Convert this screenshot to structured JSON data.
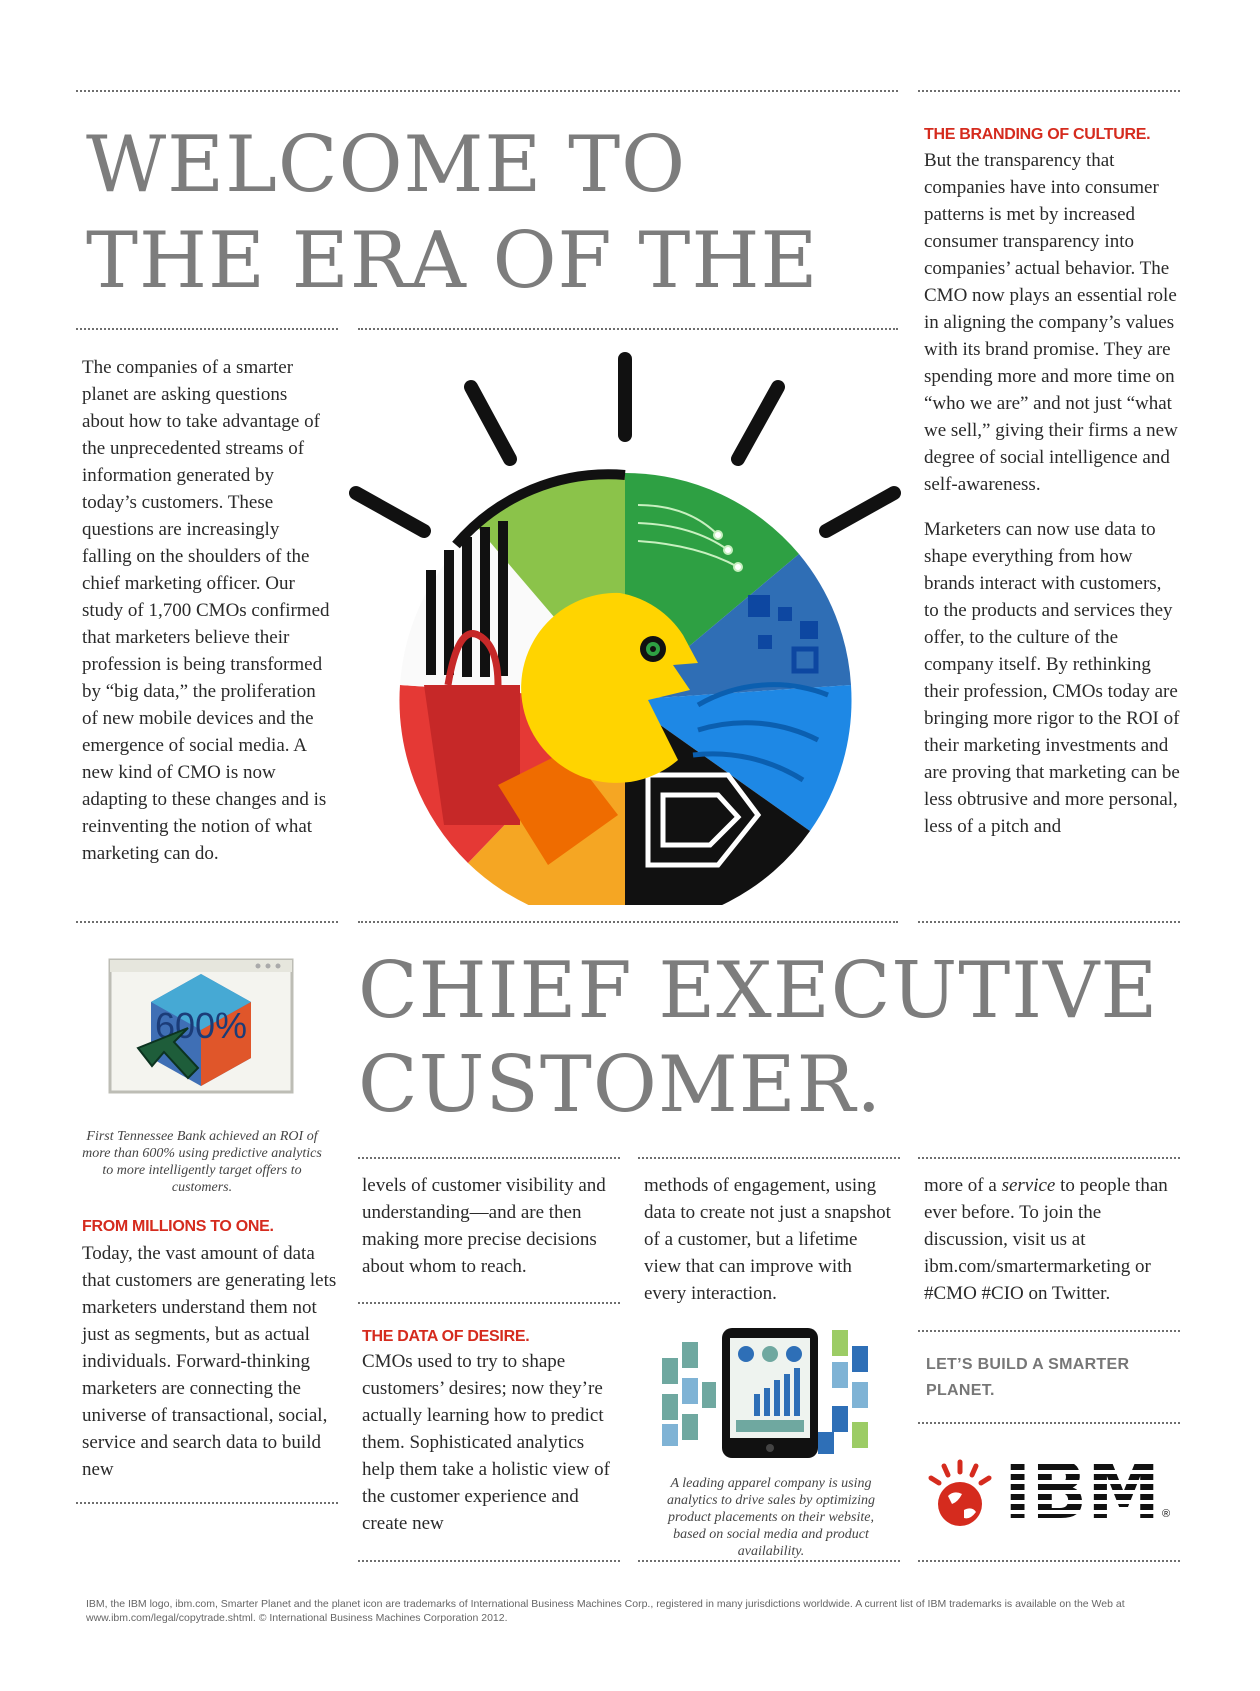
{
  "headline": {
    "top_line1": "WELCOME TO",
    "top_line2": "THE ERA OF THE",
    "bottom_line1": "CHIEF EXECUTIVE",
    "bottom_line2": "CUSTOMER."
  },
  "intro": {
    "text": "The companies of a smarter planet are asking questions about how to take advantage of the unprecedented streams of information generated by today’s customers. These questions are increasingly falling on the shoulders of the chief marketing officer. Our study of 1,700 CMOs confirmed that marketers believe their profession is being transformed by “big data,” the proliferation of new mobile devices and the emergence of social media. A new kind of CMO is now adapting to these changes and is reinventing the notion of what marketing can do."
  },
  "branding": {
    "heading": "THE BRANDING OF CULTURE.",
    "paragraph1": "But the transparency that companies have into consumer patterns is met by increased consumer transparency into companies’ actual behavior. The CMO now plays an essential role in aligning the company’s values with its brand promise. They are spending more and more time on “who we are” and not just “what we sell,” giving their firms a new degree of social intelligence and self-awareness.",
    "paragraph2": "Marketers can now use data to shape everything from how brands interact with customers, to the products and services they offer, to the culture of the company itself. By rethinking their profession, CMOs today are bringing more rigor to the ROI of their marketing investments and are proving that marketing can be less obtrusive and more personal, less of a pitch and"
  },
  "bank_graphic": {
    "label": "600%"
  },
  "bank_caption": "First Tennessee Bank achieved an ROI of more than 600% using predictive analytics to more intelligently target offers to customers.",
  "millions": {
    "heading": "FROM MILLIONS TO ONE.",
    "text": "Today, the vast amount of data that customers are generating lets marketers understand them not just as segments, but as actual individuals. Forward-thinking marketers are connecting the universe of transactional, social, service and search data to build new"
  },
  "col2": {
    "text": "levels of customer visibility and understanding—and are then making more precise decisions about whom to reach."
  },
  "desire": {
    "heading": "THE DATA OF DESIRE.",
    "text": "CMOs used to try to shape customers’ desires; now they’re actually learning how to predict them. Sophisticated analytics help them take a holistic view of the customer experience and create new"
  },
  "col3": {
    "text": "methods of engagement, using data to create not just a snapshot of a customer, but a lifetime view that can improve with every interaction."
  },
  "apparel_caption": "A leading apparel company is using analytics to drive sales by optimizing product placements on their website, based on social media and product availability.",
  "col4": {
    "text_before": "more of a ",
    "text_em": "service",
    "text_after": " to people than ever before. To join the discussion, visit us at ibm.com/smartermarketing or #CMO #CIO on Twitter."
  },
  "cta": {
    "line1": "LET’S BUILD A SMARTER",
    "line2": "PLANET."
  },
  "logo": {
    "text": "IBM",
    "registered": "®"
  },
  "footer": {
    "line1": "IBM, the IBM logo, ibm.com, Smarter Planet and the planet icon are trademarks of International Business Machines Corp., registered in many jurisdictions worldwide. A current list of IBM trademarks is available on the Web at",
    "line2": "www.ibm.com/legal/copytrade.shtml. © International Business Machines Corporation 2012."
  },
  "colors": {
    "headline_gray": "#7d7d7d",
    "ibm_red": "#d52b1e",
    "wheel_green": "#2ea043",
    "wheel_yellow": "#ffd400",
    "wheel_blue": "#1e88e5",
    "wheel_red": "#e53935",
    "wheel_orange": "#f57c00"
  },
  "icons": {
    "hero": "smarter-planet-face-wheel-illustration",
    "bank": "percentage-cube-with-cursor-icon",
    "apparel": "tablet-analytics-with-price-tags-icon",
    "planet": "smarter-planet-globe-icon"
  }
}
